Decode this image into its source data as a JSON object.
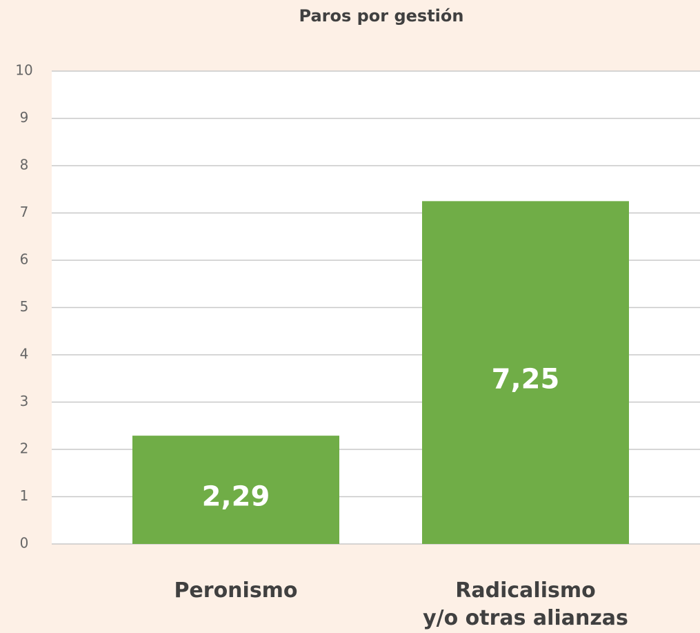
{
  "chart_data": {
    "type": "bar",
    "title": "Paros por gestión",
    "categories": [
      "Peronismo",
      "Radicalismo\ny/o otras alianzas"
    ],
    "values": [
      2.29,
      7.25
    ],
    "value_labels": [
      "2,29",
      "7,25"
    ],
    "color": "#70ad47",
    "ylim": [
      0,
      10
    ],
    "yticks": [
      0,
      1,
      2,
      3,
      4,
      5,
      6,
      7,
      8,
      9,
      10
    ],
    "grid": true
  }
}
